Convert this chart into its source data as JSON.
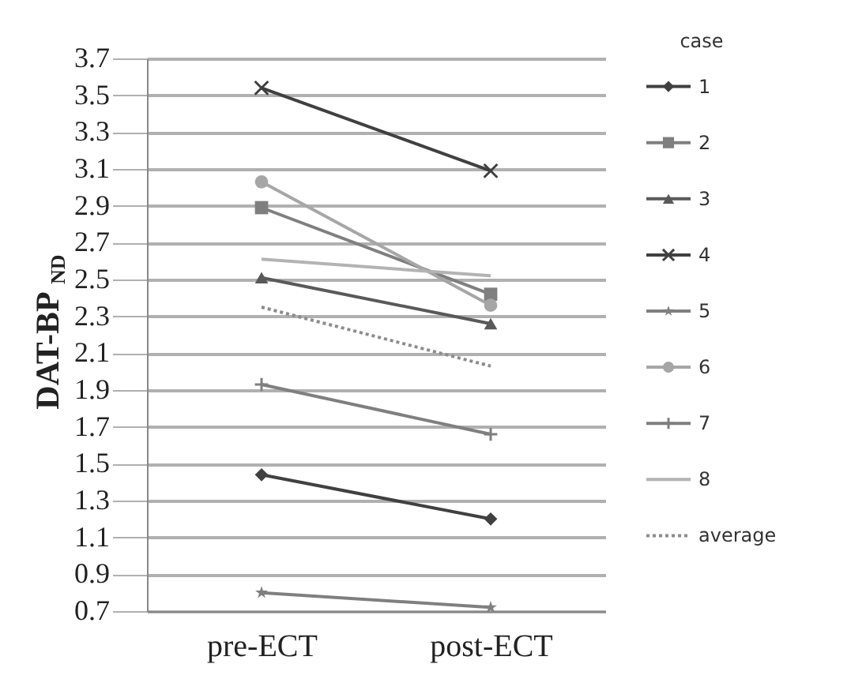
{
  "chart_data": {
    "type": "line",
    "ylabel": "DAT-BP$_{ND}$",
    "legend_title": "case",
    "legend": "right",
    "grid": "y",
    "categories": [
      "pre-ECT",
      "post-ECT"
    ],
    "ylim": [
      0.7,
      3.7
    ],
    "yticks": [
      0.7,
      0.9,
      1.1,
      1.3,
      1.5,
      1.7,
      1.9,
      2.1,
      2.3,
      2.5,
      2.7,
      2.9,
      3.1,
      3.3,
      3.5,
      3.7
    ],
    "series": [
      {
        "name": "1",
        "color": "#404040",
        "marker": "diamond",
        "values": [
          1.44,
          1.2
        ]
      },
      {
        "name": "2",
        "color": "#7f7f7f",
        "marker": "square",
        "values": [
          2.89,
          2.42
        ]
      },
      {
        "name": "3",
        "color": "#595959",
        "marker": "triangle",
        "values": [
          2.51,
          2.26
        ]
      },
      {
        "name": "4",
        "color": "#404040",
        "marker": "cross",
        "values": [
          3.54,
          3.09
        ]
      },
      {
        "name": "5",
        "color": "#7f7f7f",
        "marker": "star",
        "values": [
          0.8,
          0.72
        ]
      },
      {
        "name": "6",
        "color": "#a6a6a6",
        "marker": "circle",
        "values": [
          3.03,
          2.36
        ]
      },
      {
        "name": "7",
        "color": "#7f7f7f",
        "marker": "plus",
        "values": [
          1.93,
          1.66
        ]
      },
      {
        "name": "8",
        "color": "#b3b3b3",
        "marker": "none",
        "values": [
          2.61,
          2.52
        ]
      },
      {
        "name": "average",
        "color": "#8c8c8c",
        "marker": "none",
        "line_style": "dotted",
        "values": [
          2.35,
          2.03
        ]
      }
    ]
  }
}
